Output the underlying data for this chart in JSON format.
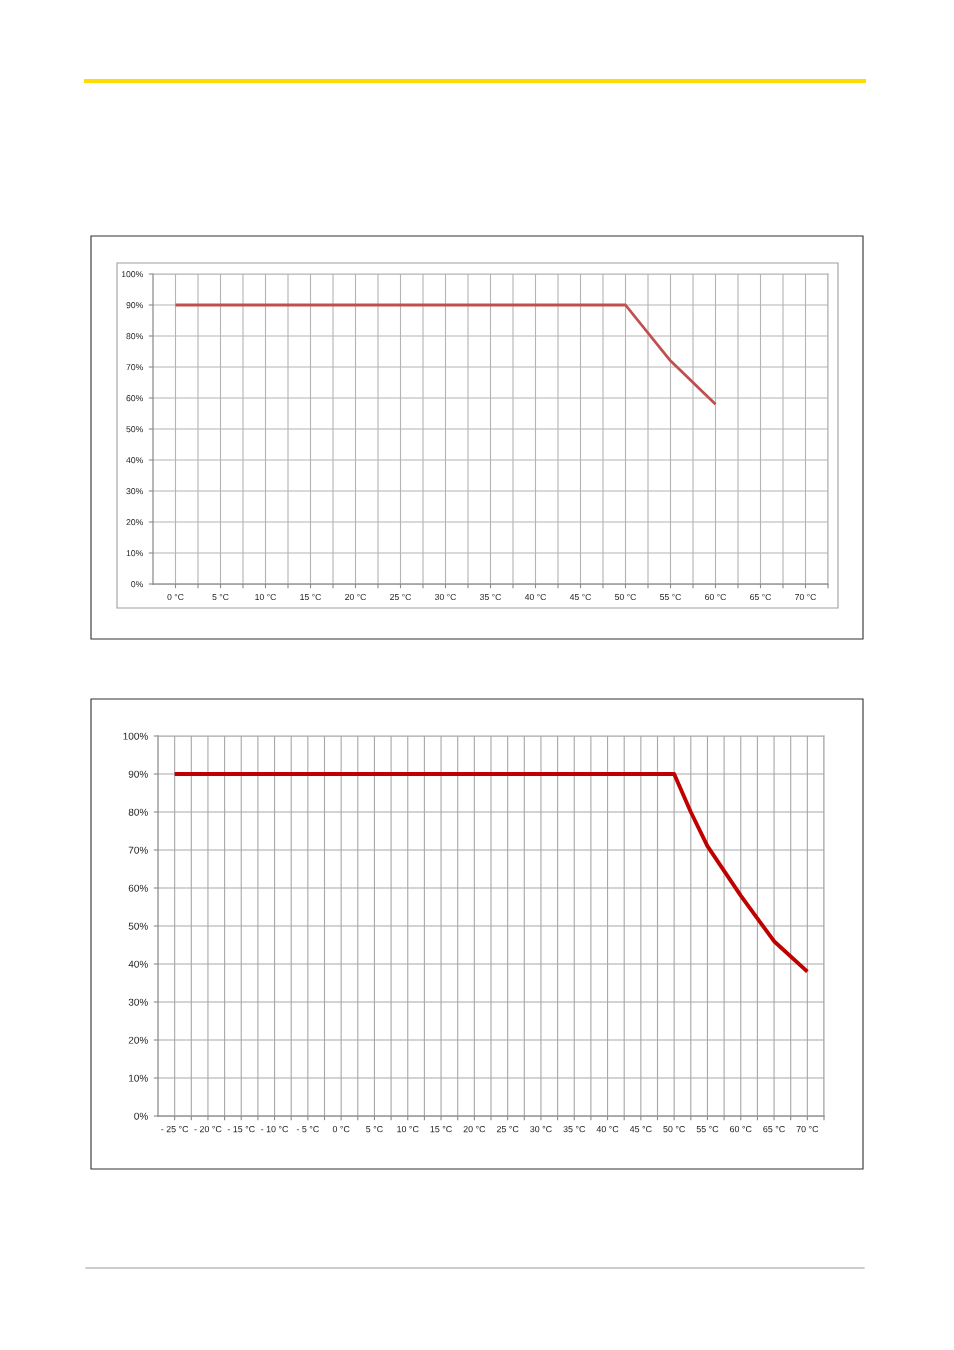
{
  "chart_data": [
    {
      "type": "line",
      "x": [
        0,
        50,
        55,
        60
      ],
      "series": [
        {
          "color": "#c0504d",
          "values": [
            90,
            90,
            72,
            58
          ]
        }
      ],
      "xlim": [
        -2.5,
        72.5
      ],
      "xticks": [
        {
          "value": 0,
          "label": "0 °C"
        },
        {
          "value": 2.5,
          "label": null
        },
        {
          "value": 5,
          "label": "5 °C"
        },
        {
          "value": 7.5,
          "label": null
        },
        {
          "value": 10,
          "label": "10 °C"
        },
        {
          "value": 12.5,
          "label": null
        },
        {
          "value": 15,
          "label": "15 °C"
        },
        {
          "value": 17.5,
          "label": null
        },
        {
          "value": 20,
          "label": "20 °C"
        },
        {
          "value": 22.5,
          "label": null
        },
        {
          "value": 25,
          "label": "25 °C"
        },
        {
          "value": 27.5,
          "label": null
        },
        {
          "value": 30,
          "label": "30 °C"
        },
        {
          "value": 32.5,
          "label": null
        },
        {
          "value": 35,
          "label": "35 °C"
        },
        {
          "value": 37.5,
          "label": null
        },
        {
          "value": 40,
          "label": "40 °C"
        },
        {
          "value": 42.5,
          "label": null
        },
        {
          "value": 45,
          "label": "45 °C"
        },
        {
          "value": 47.5,
          "label": null
        },
        {
          "value": 50,
          "label": "50 °C"
        },
        {
          "value": 52.5,
          "label": null
        },
        {
          "value": 55,
          "label": "55 °C"
        },
        {
          "value": 57.5,
          "label": null
        },
        {
          "value": 60,
          "label": "60 °C"
        },
        {
          "value": 62.5,
          "label": null
        },
        {
          "value": 65,
          "label": "65 °C"
        },
        {
          "value": 67.5,
          "label": null
        },
        {
          "value": 70,
          "label": "70 °C"
        },
        {
          "value": 72.5,
          "label": null
        }
      ],
      "ylim": [
        0,
        100
      ],
      "yticks": [
        {
          "value": 0,
          "label": "0%"
        },
        {
          "value": 10,
          "label": "10%"
        },
        {
          "value": 20,
          "label": "20%"
        },
        {
          "value": 30,
          "label": "30%"
        },
        {
          "value": 40,
          "label": "40%"
        },
        {
          "value": 50,
          "label": "50%"
        },
        {
          "value": 60,
          "label": "60%"
        },
        {
          "value": 70,
          "label": "70%"
        },
        {
          "value": 80,
          "label": "80%"
        },
        {
          "value": 90,
          "label": "90%"
        },
        {
          "value": 100,
          "label": "100%"
        }
      ],
      "grid": true,
      "line_style": "solid"
    },
    {
      "type": "line",
      "x": [
        -25,
        50,
        52.5,
        55,
        60,
        65,
        70
      ],
      "series": [
        {
          "color": "#c00000",
          "values": [
            90,
            90,
            80,
            71,
            58,
            46,
            38
          ]
        }
      ],
      "xlim": [
        -27.5,
        72.5
      ],
      "xticks": [
        {
          "value": -25,
          "label": "- 25 °C"
        },
        {
          "value": -22.5,
          "label": null
        },
        {
          "value": -20,
          "label": "- 20 °C"
        },
        {
          "value": -17.5,
          "label": null
        },
        {
          "value": -15,
          "label": "- 15 °C"
        },
        {
          "value": -12.5,
          "label": null
        },
        {
          "value": -10,
          "label": "- 10 °C"
        },
        {
          "value": -7.5,
          "label": null
        },
        {
          "value": -5,
          "label": "- 5 °C"
        },
        {
          "value": -2.5,
          "label": null
        },
        {
          "value": 0,
          "label": "0 °C"
        },
        {
          "value": 2.5,
          "label": null
        },
        {
          "value": 5,
          "label": "5 °C"
        },
        {
          "value": 7.5,
          "label": null
        },
        {
          "value": 10,
          "label": "10 °C"
        },
        {
          "value": 12.5,
          "label": null
        },
        {
          "value": 15,
          "label": "15 °C"
        },
        {
          "value": 17.5,
          "label": null
        },
        {
          "value": 20,
          "label": "20 °C"
        },
        {
          "value": 22.5,
          "label": null
        },
        {
          "value": 25,
          "label": "25 °C"
        },
        {
          "value": 27.5,
          "label": null
        },
        {
          "value": 30,
          "label": "30 °C"
        },
        {
          "value": 32.5,
          "label": null
        },
        {
          "value": 35,
          "label": "35 °C"
        },
        {
          "value": 37.5,
          "label": null
        },
        {
          "value": 40,
          "label": "40 °C"
        },
        {
          "value": 42.5,
          "label": null
        },
        {
          "value": 45,
          "label": "45 °C"
        },
        {
          "value": 47.5,
          "label": null
        },
        {
          "value": 50,
          "label": "50 °C"
        },
        {
          "value": 52.5,
          "label": null
        },
        {
          "value": 55,
          "label": "55 °C"
        },
        {
          "value": 57.5,
          "label": null
        },
        {
          "value": 60,
          "label": "60 °C"
        },
        {
          "value": 62.5,
          "label": null
        },
        {
          "value": 65,
          "label": "65 °C"
        },
        {
          "value": 67.5,
          "label": null
        },
        {
          "value": 70,
          "label": "70 °C"
        },
        {
          "value": 72.5,
          "label": null
        }
      ],
      "ylim": [
        0,
        100
      ],
      "yticks": [
        {
          "value": 0,
          "label": "0%"
        },
        {
          "value": 10,
          "label": "10%"
        },
        {
          "value": 20,
          "label": "20%"
        },
        {
          "value": 30,
          "label": "30%"
        },
        {
          "value": 40,
          "label": "40%"
        },
        {
          "value": 50,
          "label": "50%"
        },
        {
          "value": 60,
          "label": "60%"
        },
        {
          "value": 70,
          "label": "70%"
        },
        {
          "value": 80,
          "label": "80%"
        },
        {
          "value": 90,
          "label": "90%"
        },
        {
          "value": 100,
          "label": "100%"
        }
      ],
      "grid": true,
      "line_style": "solid"
    }
  ]
}
